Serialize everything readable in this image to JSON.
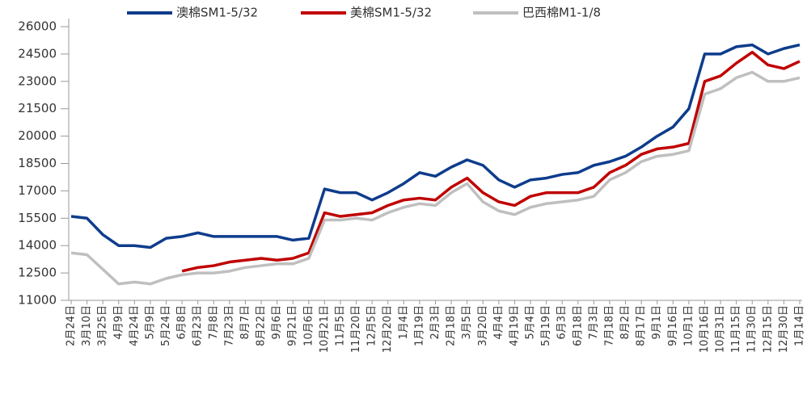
{
  "chart_data": {
    "type": "line",
    "categories": [
      "2月24日",
      "3月10日",
      "3月25日",
      "4月9日",
      "4月24日",
      "5月9日",
      "5月24日",
      "6月8日",
      "6月23日",
      "7月8日",
      "7月23日",
      "8月7日",
      "8月22日",
      "9月6日",
      "9月21日",
      "10月6日",
      "10月21日",
      "11月5日",
      "11月20日",
      "12月5日",
      "12月20日",
      "1月4日",
      "1月19日",
      "2月3日",
      "2月18日",
      "3月5日",
      "3月20日",
      "4月4日",
      "4月19日",
      "5月4日",
      "5月19日",
      "6月3日",
      "6月18日",
      "7月3日",
      "7月18日",
      "8月2日",
      "8月17日",
      "9月1日",
      "9月16日",
      "10月1日",
      "10月16日",
      "10月31日",
      "11月15日",
      "11月30日",
      "12月15日",
      "12月30日",
      "1月14日"
    ],
    "series": [
      {
        "name": "澳棉SM1-5/32",
        "color": "#0e3c8c",
        "values": [
          15600,
          15500,
          14600,
          14000,
          14000,
          13900,
          14400,
          14500,
          14700,
          14500,
          14500,
          14500,
          14500,
          14500,
          14300,
          14400,
          17100,
          16900,
          16900,
          16500,
          16900,
          17400,
          18000,
          17800,
          18300,
          18700,
          18400,
          17600,
          17200,
          17600,
          17700,
          17900,
          18000,
          18400,
          18600,
          18900,
          19400,
          20000,
          20500,
          21500,
          24500,
          24500,
          24900,
          25000,
          24500,
          24800,
          25000
        ]
      },
      {
        "name": "美棉SM1-5/32",
        "color": "#c00000",
        "values": [
          null,
          null,
          null,
          null,
          null,
          null,
          null,
          12600,
          12800,
          12900,
          13100,
          13200,
          13300,
          13200,
          13300,
          13600,
          15800,
          15600,
          15700,
          15800,
          16200,
          16500,
          16600,
          16500,
          17200,
          17700,
          16900,
          16400,
          16200,
          16700,
          16900,
          16900,
          16900,
          17200,
          18000,
          18400,
          19000,
          19300,
          19400,
          19600,
          23000,
          23300,
          24000,
          24600,
          23900,
          23700,
          24100
        ]
      },
      {
        "name": "巴西棉M1-1/8",
        "color": "#bfbfbf",
        "values": [
          13600,
          13500,
          12700,
          11900,
          12000,
          11900,
          12200,
          12400,
          12500,
          12500,
          12600,
          12800,
          12900,
          13000,
          13000,
          13300,
          15400,
          15400,
          15500,
          15400,
          15800,
          16100,
          16300,
          16200,
          16900,
          17400,
          16400,
          15900,
          15700,
          16100,
          16300,
          16400,
          16500,
          16700,
          17600,
          18000,
          18600,
          18900,
          19000,
          19200,
          22300,
          22600,
          23200,
          23500,
          23000,
          23000,
          23200
        ]
      }
    ],
    "ylim": [
      11000,
      26000
    ],
    "yticks": [
      11000,
      12500,
      14000,
      15500,
      17000,
      18500,
      20000,
      21500,
      23000,
      24500,
      26000
    ],
    "legend": "top"
  }
}
